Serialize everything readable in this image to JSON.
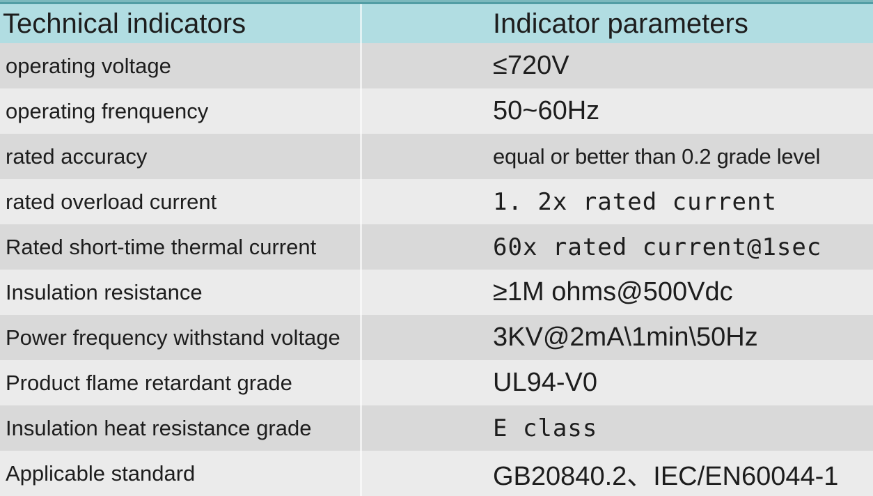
{
  "table": {
    "header": {
      "col1": "Technical indicators",
      "col2": "Indicator parameters"
    },
    "rows": [
      {
        "indicator": "operating voltage",
        "parameter": "≤720V"
      },
      {
        "indicator": "operating frenquency",
        "parameter": "50~60Hz"
      },
      {
        "indicator": "rated accuracy",
        "parameter": "equal or better than 0.2 grade level"
      },
      {
        "indicator": "rated overload current",
        "parameter": "1. 2x rated current"
      },
      {
        "indicator": "Rated short-time thermal current",
        "parameter": "60x rated current@1sec"
      },
      {
        "indicator": "Insulation resistance",
        "parameter": "≥1M ohms@500Vdc"
      },
      {
        "indicator": "Power frequency withstand voltage",
        "parameter": "3KV@2mA\\1min\\50Hz"
      },
      {
        "indicator": "Product flame retardant grade",
        "parameter": "UL94-V0"
      },
      {
        "indicator": "Insulation heat resistance grade",
        "parameter": "E class"
      },
      {
        "indicator": "Applicable standard",
        "parameter": "GB20840.2、IEC/EN60044-1"
      }
    ],
    "colors": {
      "accent_top": "#7bb8bd",
      "accent_bottom": "#529da4",
      "header_bg": "#b1dde2",
      "row_dark": "#d9d9d9",
      "row_light": "#ebebeb",
      "text": "#1d1d1d",
      "divider": "rgba(255,255,255,0.62)"
    }
  }
}
